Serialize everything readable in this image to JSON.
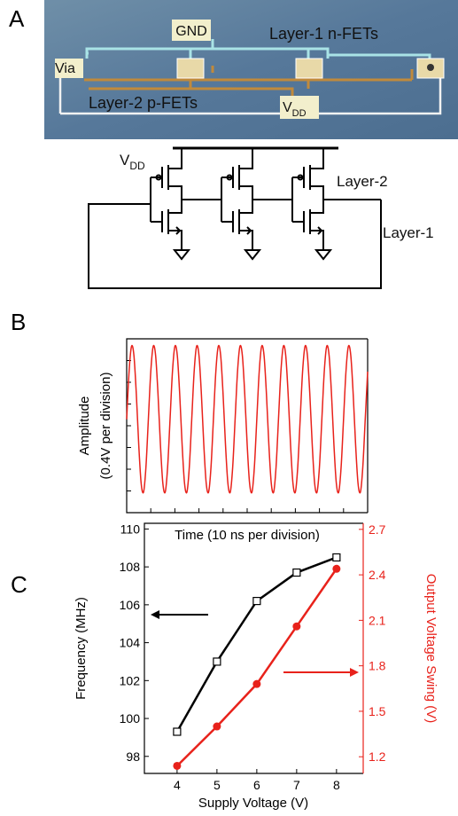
{
  "panel_labels": [
    "A",
    "B",
    "C"
  ],
  "micrograph": {
    "gnd": "GND",
    "layer1": "Layer-1 n-FETs",
    "via": "Via",
    "layer2": "Layer-2 p-FETs",
    "vdd": {
      "text": "V",
      "subscript": "DD"
    }
  },
  "schematic": {
    "vdd": {
      "text": "V",
      "subscript": "DD"
    },
    "layer2": "Layer-2",
    "layer1": "Layer-1"
  },
  "chart_data": [
    {
      "type": "line",
      "ylabel": [
        "Amplitude",
        "(0.4V per division)"
      ],
      "xlabel": "Time (10 ns per division)",
      "x": [
        0,
        0.1,
        0.2,
        0.3,
        0.4,
        0.5,
        0.6,
        0.7,
        0.8,
        0.9,
        1,
        1.1,
        1.2,
        1.3,
        1.4,
        1.5,
        1.6,
        1.7,
        1.8,
        1.9,
        2,
        2.1,
        2.2,
        2.3,
        2.4,
        2.5,
        2.6,
        2.7,
        2.8,
        2.9,
        3,
        3.1,
        3.2,
        3.3,
        3.4,
        3.5,
        3.6,
        3.7,
        3.8,
        3.9,
        4,
        4.1,
        4.2,
        4.3,
        4.4,
        4.5,
        4.6,
        4.7,
        4.8,
        4.9,
        5,
        5.1,
        5.2,
        5.3,
        5.4,
        5.5,
        5.6,
        5.7,
        5.8,
        5.9,
        6,
        6.1,
        6.2,
        6.3,
        6.4,
        6.5,
        6.6,
        6.7,
        6.8,
        6.9,
        7,
        7.1,
        7.2,
        7.3,
        7.4,
        7.5,
        7.6,
        7.7,
        7.8,
        7.9,
        8,
        8.1,
        8.2,
        8.3,
        8.4,
        8.5,
        8.6,
        8.7,
        8.8,
        8.9,
        9,
        9.1,
        9.2,
        9.3,
        9.4,
        9.5,
        9.6,
        9.7,
        9.8,
        9.9,
        10
      ],
      "series": [
        {
          "color": "#e8221b",
          "values": [
            4.3,
            6.49,
            7.65,
            7.24,
            5.46,
            3.14,
            1.36,
            0.95,
            2.11,
            4.3,
            6.49,
            7.65,
            7.24,
            5.46,
            3.14,
            1.36,
            0.95,
            2.11,
            4.3,
            6.49,
            7.65,
            7.24,
            5.46,
            3.14,
            1.36,
            0.95,
            2.11,
            4.3,
            6.49,
            7.65,
            7.24,
            5.46,
            3.14,
            1.36,
            0.95,
            2.11,
            4.3,
            6.49,
            7.65,
            7.24,
            5.46,
            3.14,
            1.36,
            0.95,
            2.11,
            4.3,
            6.49,
            7.65,
            7.24,
            5.46,
            3.14,
            1.36,
            0.95,
            2.11,
            4.3,
            6.49,
            7.65,
            7.24,
            5.46,
            3.14,
            1.36,
            0.95,
            2.11,
            4.3,
            6.49,
            7.65,
            7.24,
            5.46,
            3.14,
            1.36,
            0.95,
            2.11,
            4.3,
            6.49,
            7.65,
            7.24,
            5.46,
            3.14,
            1.36,
            0.95,
            2.11,
            4.3,
            6.49,
            7.65,
            7.24,
            5.46,
            3.14,
            1.36,
            0.95,
            2.11,
            4.3,
            6.49,
            7.65,
            7.24,
            5.46,
            3.14,
            1.36,
            0.95,
            2.11,
            4.3,
            6.49
          ]
        }
      ],
      "xlim": [
        0,
        10
      ],
      "ylim": [
        0,
        8
      ],
      "xticks": [
        0,
        1,
        2,
        3,
        4,
        5,
        6,
        7,
        8,
        9,
        10
      ],
      "yticks": [
        0,
        1,
        2,
        3,
        4,
        5,
        6,
        7,
        8
      ]
    },
    {
      "type": "line",
      "xlabel": "Supply Voltage (V)",
      "ylabel": "Frequency (MHz)",
      "y2label": "Output Voltage Swing (V)",
      "x": [
        4,
        5,
        6,
        7,
        8
      ],
      "series": [
        {
          "color": "#000000",
          "marker": "square",
          "values": [
            99.3,
            103.0,
            106.2,
            107.7,
            108.5
          ]
        },
        {
          "color": "#e8221b",
          "marker": "circle",
          "axis": "y2",
          "values": [
            1.14,
            1.4,
            1.68,
            2.06,
            2.44
          ]
        }
      ],
      "xlim": [
        3.18,
        8.67
      ],
      "ylim": [
        97.1,
        110.3
      ],
      "y2lim": [
        1.09,
        2.74
      ],
      "xticks": [
        4,
        5,
        6,
        7,
        8
      ],
      "yticks": [
        98,
        100,
        102,
        104,
        106,
        108,
        110
      ],
      "y2ticks": [
        1.2,
        1.5,
        1.8,
        2.1,
        2.4,
        2.7
      ]
    }
  ]
}
